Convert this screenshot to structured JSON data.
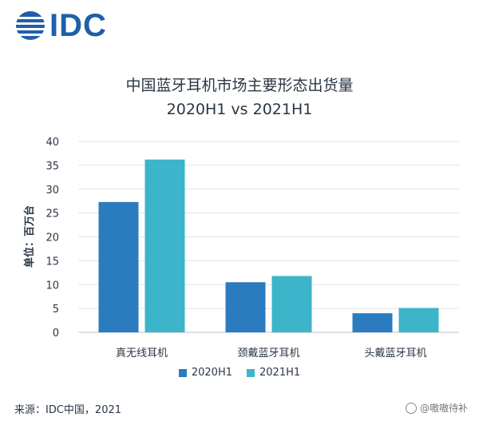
{
  "logo": {
    "text": "IDC",
    "color": "#1f5fa8"
  },
  "chart_data": {
    "type": "bar",
    "title": "中国蓝牙耳机市场主要形态出货量",
    "subtitle": "2020H1 vs 2021H1",
    "ylabel": "单位：百万台",
    "xlabel": "",
    "categories": [
      "真无线耳机",
      "颈戴蓝牙耳机",
      "头戴蓝牙耳机"
    ],
    "series": [
      {
        "name": "2020H1",
        "values": [
          27.3,
          10.5,
          4.0
        ],
        "color": "#2b7bbf"
      },
      {
        "name": "2021H1",
        "values": [
          36.2,
          11.8,
          5.1
        ],
        "color": "#3cb4c9"
      }
    ],
    "ylim": [
      0,
      40
    ],
    "yticks": [
      0,
      5,
      10,
      15,
      20,
      25,
      30,
      35,
      40
    ],
    "grid": true,
    "legend": "bottom"
  },
  "source": "来源：IDC中国，2021",
  "watermark": "@嗷嗷待补"
}
